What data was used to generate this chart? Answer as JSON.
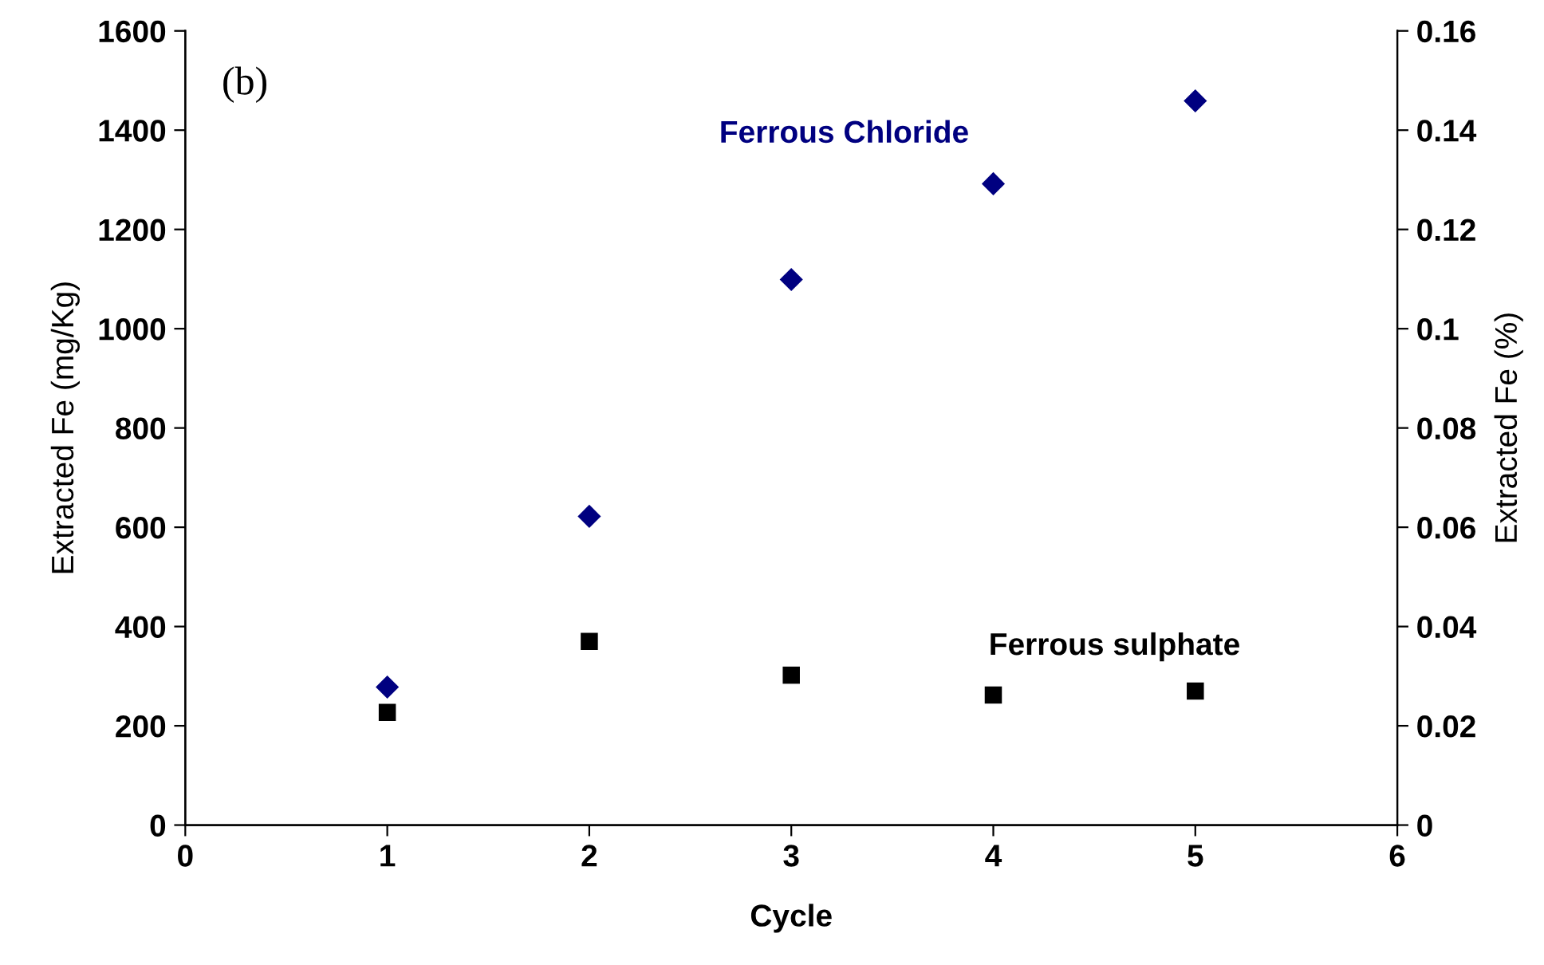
{
  "chart_data": {
    "type": "scatter",
    "xlabel": "Cycle",
    "ylabel": "Extracted Fe (mg/Kg)",
    "y2label": "Extracted Fe (%)",
    "x": [
      1,
      2,
      3,
      4,
      5
    ],
    "series": [
      {
        "name": "Ferrous Chloride",
        "color": "#000080",
        "marker": "diamond",
        "values": [
          278,
          622,
          1099,
          1292,
          1459
        ]
      },
      {
        "name": "Ferrous sulphate",
        "color": "#000000",
        "marker": "square",
        "values": [
          227,
          370,
          302,
          262,
          270
        ]
      }
    ],
    "annotations": [
      "(b)"
    ],
    "xlim": [
      0,
      6
    ],
    "xticks": [
      0,
      1,
      2,
      3,
      4,
      5,
      6
    ],
    "ylim": [
      0,
      1600
    ],
    "yticks": [
      0,
      200,
      400,
      600,
      800,
      1000,
      1200,
      1400,
      1600
    ],
    "y2lim": [
      0,
      0.16
    ],
    "y2ticks": [
      0,
      0.02,
      0.04,
      0.06,
      0.08,
      {
        "value": 0.1,
        "label": "0.1"
      },
      0.12,
      0.14,
      0.16
    ],
    "grid": false,
    "legend": false
  }
}
